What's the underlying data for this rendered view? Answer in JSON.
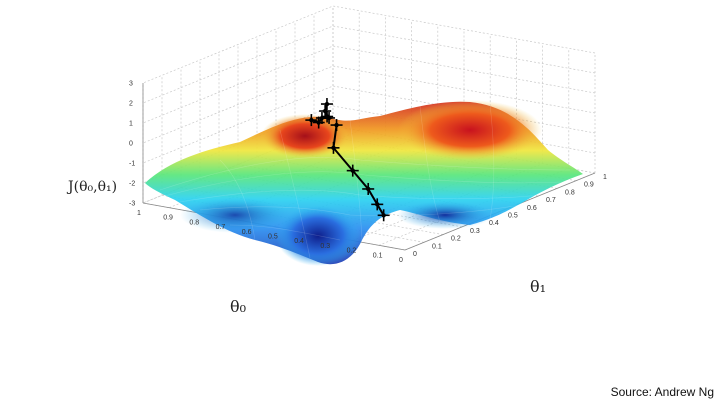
{
  "chart_data": {
    "type": "surface",
    "axes": {
      "z": {
        "label": "J(θ₀,θ₁)",
        "ticks": [
          "3",
          "2",
          "1",
          "0",
          "-1",
          "-2",
          "-3"
        ],
        "range": [
          -3,
          3
        ]
      },
      "x": {
        "label": "θ₀",
        "ticks": [
          "1",
          "0.9",
          "0.8",
          "0.7",
          "0.6",
          "0.5",
          "0.4",
          "0.3",
          "0.2",
          "0.1",
          "0"
        ],
        "range": [
          0,
          1
        ]
      },
      "y": {
        "label": "θ₁",
        "ticks": [
          "0",
          "0.1",
          "0.2",
          "0.3",
          "0.4",
          "0.5",
          "0.6",
          "0.7",
          "0.8",
          "0.9",
          "1"
        ],
        "range": [
          0,
          1
        ]
      }
    },
    "grid": true,
    "colormap": [
      "#1e3cb4",
      "#2a8ef0",
      "#2ad2f0",
      "#58e67a",
      "#f0e63c",
      "#f0961e",
      "#d22a1e"
    ],
    "series": [
      {
        "points": [
          [
            0.37,
            0.15,
            1.8
          ],
          [
            0.36,
            0.12,
            0.8
          ],
          [
            0.33,
            0.18,
            -0.5
          ],
          [
            0.3,
            0.22,
            -1.5
          ],
          [
            0.28,
            0.24,
            -2.3
          ],
          [
            0.27,
            0.26,
            -2.9
          ]
        ]
      },
      {
        "points": [
          [
            0.43,
            0.1,
            2.1
          ],
          [
            0.46,
            0.18,
            1.6
          ],
          [
            0.52,
            0.28,
            1.3
          ],
          [
            0.58,
            0.4,
            0.7
          ],
          [
            0.66,
            0.5,
            0.2
          ],
          [
            0.74,
            0.6,
            -0.1
          ],
          [
            0.82,
            0.72,
            -0.4
          ]
        ]
      }
    ]
  },
  "source": "Source: Andrew Ng"
}
